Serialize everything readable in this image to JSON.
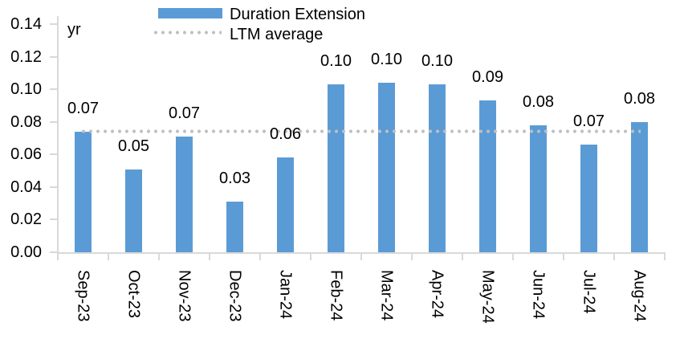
{
  "chart_data": {
    "type": "bar",
    "title": "",
    "unit_label": "yr",
    "categories": [
      "Sep-23",
      "Oct-23",
      "Nov-23",
      "Dec-23",
      "Jan-24",
      "Feb-24",
      "Mar-24",
      "Apr-24",
      "May-24",
      "Jun-24",
      "Jul-24",
      "Aug-24"
    ],
    "series": [
      {
        "name": "Duration Extension",
        "type": "bar",
        "color": "#5B9BD5",
        "values": [
          0.074,
          0.051,
          0.071,
          0.031,
          0.058,
          0.103,
          0.104,
          0.103,
          0.093,
          0.078,
          0.066,
          0.08
        ],
        "data_labels": [
          "0.07",
          "0.05",
          "0.07",
          "0.03",
          "0.06",
          "0.10",
          "0.10",
          "0.10",
          "0.09",
          "0.08",
          "0.07",
          "0.08"
        ]
      },
      {
        "name": "LTM average",
        "type": "line",
        "line_style": "dotted",
        "color": "#BFBFBF",
        "value": 0.074
      }
    ],
    "y_axis": {
      "min": 0,
      "max": 0.14,
      "step": 0.02,
      "tick_labels": [
        "0.14",
        "0.12",
        "0.10",
        "0.08",
        "0.06",
        "0.04",
        "0.02",
        "0.00"
      ]
    },
    "x_axis": {
      "label_rotation": "vertical"
    },
    "legend": {
      "position": "top-center",
      "entries": [
        "Duration Extension",
        "LTM average"
      ]
    },
    "grid": false,
    "axis_color": "#D9D9D9",
    "text_color": "#000000",
    "background": "#FFFFFF"
  }
}
